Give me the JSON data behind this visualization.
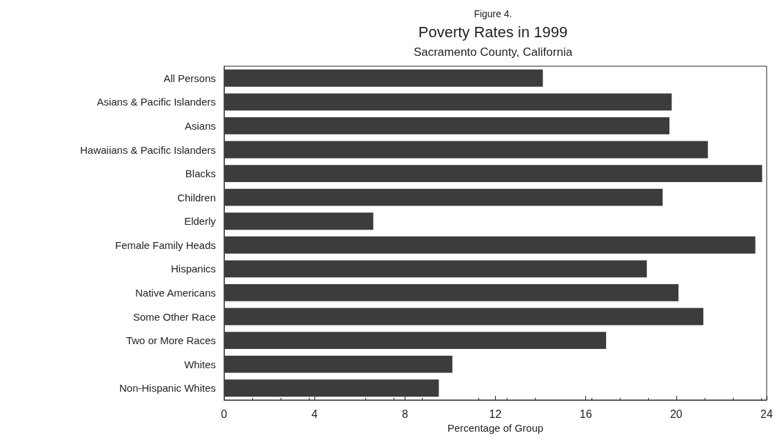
{
  "chart_data": {
    "type": "bar",
    "orientation": "horizontal",
    "title": "Poverty Rates in 1999",
    "subtitle": "Sacramento County, California",
    "annotations": [
      "Figure 4."
    ],
    "xlabel": "Percentage of Group",
    "categories": [
      "All Persons",
      "Asians & Pacific Islanders",
      "Asians",
      "Hawaiians & Pacific Islanders",
      "Blacks",
      "Children",
      "Elderly",
      "Female Family Heads",
      "Hispanics",
      "Native Americans",
      "Some Other Race",
      "Two or More Races",
      "Whites",
      "Non-Hispanic Whites"
    ],
    "values": [
      14.1,
      19.8,
      19.7,
      21.4,
      23.8,
      19.4,
      6.6,
      23.5,
      18.7,
      20.1,
      21.2,
      16.9,
      10.1,
      9.5
    ],
    "color": "#3c3c3c",
    "xlim": [
      0,
      24
    ],
    "xticks": [
      0,
      4,
      8,
      12,
      16,
      20,
      24
    ],
    "grid": false
  }
}
